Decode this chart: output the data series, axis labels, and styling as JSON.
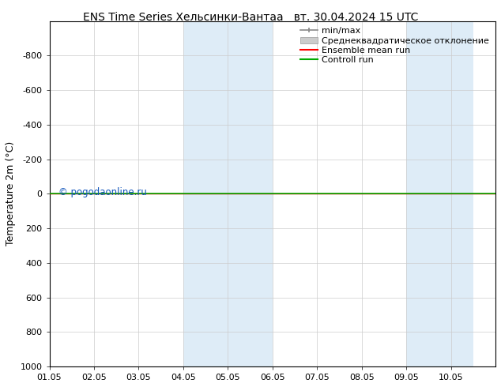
{
  "title_left": "ENS Time Series Хельсинки-Вантаа",
  "title_right": "вт. 30.04.2024 15 UTC",
  "ylabel": "Temperature 2m (°C)",
  "ylim_bottom": 1000,
  "ylim_top": -1000,
  "yticks": [
    -800,
    -600,
    -400,
    -200,
    0,
    200,
    400,
    600,
    800,
    1000
  ],
  "xlim": [
    0,
    10
  ],
  "xtick_positions": [
    0,
    1,
    2,
    3,
    4,
    5,
    6,
    7,
    8,
    9
  ],
  "xtick_labels": [
    "01.05",
    "02.05",
    "03.05",
    "04.05",
    "05.05",
    "06.05",
    "07.05",
    "08.05",
    "09.05",
    "10.05"
  ],
  "shade_bands": [
    {
      "x_start": 3.0,
      "x_end": 5.0,
      "color": "#d6e8f5",
      "alpha": 0.8
    },
    {
      "x_start": 8.0,
      "x_end": 9.5,
      "color": "#d6e8f5",
      "alpha": 0.8
    }
  ],
  "control_run_y": 0,
  "control_run_color": "#00aa00",
  "ensemble_mean_color": "#ff0000",
  "minmax_color": "#888888",
  "std_fill_color": "#cccccc",
  "watermark": "© pogodaonline.ru",
  "watermark_color": "#1155bb",
  "background_color": "#ffffff",
  "grid_color": "#cccccc",
  "legend_labels": [
    "min/max",
    "Среднеквадратическое отклонение",
    "Ensemble mean run",
    "Controll run"
  ],
  "title_fontsize": 10,
  "ylabel_fontsize": 9,
  "tick_fontsize": 8,
  "legend_fontsize": 8
}
